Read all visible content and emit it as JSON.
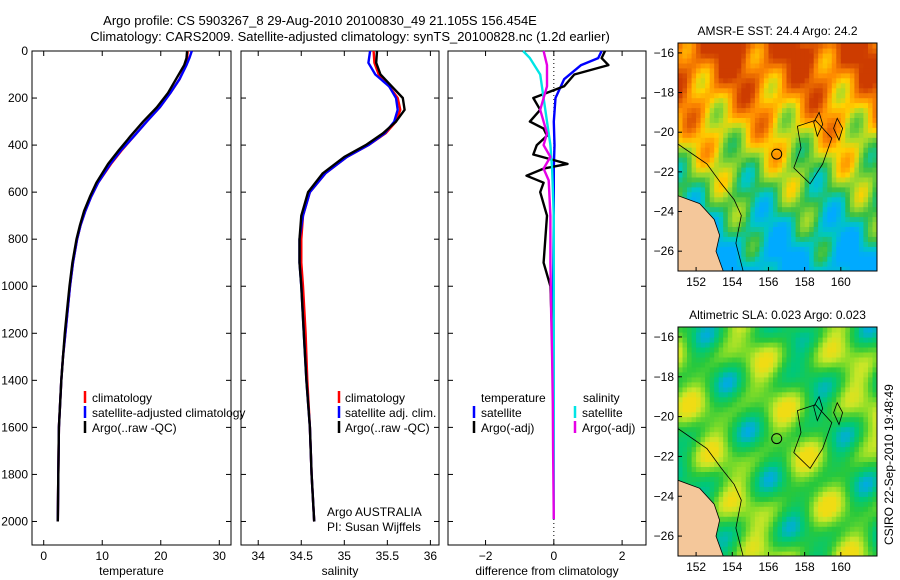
{
  "header": {
    "title_line1": "Argo profile: CS 5903267_8 29-Aug-2010 20100830_49 21.105S 156.454E",
    "title_line2": "Climatology: CARS2009. Satellite-adjusted climatology: synTS_20100828.nc (1.2d earlier)"
  },
  "colors": {
    "climatology": "#ff0000",
    "satellite": "#0000ff",
    "argo": "#000000",
    "satellite_salinity": "#00e5e5",
    "argo_salinity_adj": "#e600e6",
    "land": "#f4c79a"
  },
  "footer": {
    "credit": "CSIRO 22-Sep-2010 19:48:49"
  },
  "annotations": {
    "argo_program": "Argo AUSTRALIA",
    "pi": "PI: Susan Wijffels"
  },
  "chart_data": [
    {
      "type": "line",
      "xlabel": "temperature",
      "ylabel": "",
      "xlim": [
        -2,
        32
      ],
      "ylim": [
        2100,
        0
      ],
      "xticks": [
        0,
        10,
        20,
        30
      ],
      "yticks": [
        0,
        200,
        400,
        600,
        800,
        1000,
        1200,
        1400,
        1600,
        1800,
        2000
      ],
      "legend": [
        "climatology",
        "satellite-adjusted climatology",
        "Argo(..raw -QC)"
      ],
      "legend_location": "lower-middle",
      "series": [
        {
          "name": "climatology",
          "color": "#ff0000",
          "x": [
            24.6,
            24.5,
            24.3,
            23.2,
            21.6,
            19.8,
            17.6,
            15.5,
            13.4,
            11.5,
            9.3,
            8.1,
            7.1,
            6.3,
            5.7,
            5.0,
            4.5,
            4.1,
            3.7,
            3.3,
            3.0,
            2.8,
            2.6,
            2.5,
            2.4
          ],
          "y": [
            0,
            30,
            60,
            120,
            180,
            240,
            300,
            360,
            420,
            480,
            560,
            620,
            680,
            740,
            800,
            900,
            1000,
            1100,
            1200,
            1300,
            1400,
            1500,
            1600,
            1800,
            2000
          ]
        },
        {
          "name": "satellite-adjusted climatology",
          "color": "#0000ff",
          "x": [
            25.3,
            24.9,
            24.4,
            23.2,
            21.6,
            19.8,
            17.6,
            15.5,
            13.3,
            11.4,
            9.3,
            8.1,
            7.1,
            6.3,
            5.7,
            5.0,
            4.5,
            4.1,
            3.7,
            3.3,
            3.0,
            2.8,
            2.6,
            2.5,
            2.4
          ],
          "y": [
            0,
            30,
            60,
            120,
            180,
            240,
            300,
            360,
            420,
            480,
            560,
            620,
            680,
            740,
            800,
            900,
            1000,
            1100,
            1200,
            1300,
            1400,
            1500,
            1600,
            1800,
            2000
          ]
        },
        {
          "name": "Argo(..raw -QC)",
          "color": "#000000",
          "x": [
            24.5,
            24.4,
            24.0,
            22.6,
            21.2,
            19.3,
            17.0,
            14.9,
            12.9,
            11.0,
            9.0,
            7.9,
            6.9,
            6.2,
            5.6,
            4.9,
            4.4,
            4.0,
            3.6,
            3.3,
            3.0,
            2.8,
            2.6,
            2.5,
            2.4
          ],
          "y": [
            0,
            30,
            60,
            120,
            180,
            240,
            300,
            360,
            420,
            480,
            560,
            620,
            680,
            740,
            800,
            900,
            1000,
            1100,
            1200,
            1300,
            1400,
            1500,
            1600,
            1800,
            2000
          ]
        }
      ]
    },
    {
      "type": "line",
      "xlabel": "salinity",
      "ylabel": "",
      "xlim": [
        33.8,
        36.1
      ],
      "ylim": [
        2100,
        0
      ],
      "xticks": [
        34,
        34.5,
        35,
        35.5,
        36
      ],
      "legend": [
        "climatology",
        "satellite adj. clim.",
        "Argo(..raw -QC)"
      ],
      "legend_location": "lower-right",
      "series": [
        {
          "name": "climatology",
          "color": "#ff0000",
          "x": [
            35.34,
            35.35,
            35.4,
            35.52,
            35.62,
            35.65,
            35.6,
            35.48,
            35.28,
            35.03,
            34.78,
            34.6,
            34.52,
            34.5,
            34.5,
            34.52,
            34.55,
            34.57,
            34.6,
            34.62,
            34.65
          ],
          "y": [
            0,
            50,
            100,
            150,
            200,
            250,
            300,
            350,
            400,
            450,
            520,
            600,
            700,
            800,
            900,
            1000,
            1200,
            1400,
            1600,
            1800,
            2000
          ]
        },
        {
          "name": "satellite adj. clim.",
          "color": "#0000ff",
          "x": [
            35.3,
            35.28,
            35.36,
            35.52,
            35.6,
            35.62,
            35.58,
            35.47,
            35.28,
            35.03,
            34.78,
            34.6,
            34.52,
            34.48,
            34.48,
            34.5,
            34.53,
            34.56,
            34.6,
            34.62,
            34.65
          ],
          "y": [
            0,
            50,
            100,
            150,
            200,
            250,
            300,
            350,
            400,
            450,
            520,
            600,
            700,
            800,
            900,
            1000,
            1200,
            1400,
            1600,
            1800,
            2000
          ]
        },
        {
          "name": "Argo(..raw -QC)",
          "color": "#000000",
          "x": [
            35.38,
            35.37,
            35.42,
            35.55,
            35.68,
            35.7,
            35.6,
            35.45,
            35.25,
            35.0,
            34.75,
            34.58,
            34.5,
            34.48,
            34.48,
            34.5,
            34.53,
            34.56,
            34.6,
            34.62,
            34.65
          ],
          "y": [
            0,
            50,
            100,
            150,
            200,
            250,
            300,
            350,
            400,
            450,
            520,
            600,
            700,
            800,
            900,
            1000,
            1200,
            1400,
            1600,
            1800,
            2000
          ]
        }
      ],
      "annotations": [
        "Argo AUSTRALIA",
        "PI: Susan Wijffels"
      ]
    },
    {
      "type": "line",
      "xlabel": "difference from climatology",
      "ylabel": "",
      "xlim": [
        -3.1,
        2.7
      ],
      "ylim": [
        2100,
        0
      ],
      "xticks": [
        -2,
        0,
        2
      ],
      "legend": [
        "temperature",
        "satellite",
        "Argo(-adj)",
        "salinity",
        "satellite",
        "Argo(-adj)"
      ],
      "legend_location": "lower-middle",
      "series": [
        {
          "name": "temperature satellite",
          "color": "#0000ff",
          "x": [
            1.4,
            1.3,
            0.8,
            0.3,
            0.05,
            0.0,
            0.02,
            0.0,
            0.0,
            -0.02,
            0.0,
            0.0,
            0.0
          ],
          "y": [
            0,
            30,
            60,
            120,
            200,
            300,
            400,
            500,
            700,
            1000,
            1400,
            1800,
            1990
          ]
        },
        {
          "name": "temperature Argo(-adj)",
          "color": "#000000",
          "x": [
            1.5,
            1.4,
            1.6,
            0.6,
            0.3,
            -0.6,
            -0.4,
            -0.7,
            -0.3,
            -0.2,
            -0.5,
            -0.6,
            0.4,
            -0.3,
            -0.8,
            -0.3,
            -0.4,
            -0.2,
            -0.25,
            -0.3,
            -0.1,
            -0.05,
            0.0,
            0.0,
            0.0
          ],
          "y": [
            0,
            30,
            60,
            100,
            150,
            200,
            250,
            300,
            330,
            360,
            400,
            440,
            480,
            500,
            530,
            560,
            600,
            700,
            800,
            900,
            1000,
            1200,
            1400,
            1700,
            1990
          ]
        },
        {
          "name": "salinity satellite",
          "color": "#00e5e5",
          "x": [
            -0.9,
            -0.7,
            -0.4,
            -0.3,
            -0.2,
            -0.1,
            -0.05,
            0.0,
            0.0,
            0.0,
            0.0,
            0.0
          ],
          "y": [
            0,
            30,
            100,
            200,
            300,
            400,
            500,
            700,
            1000,
            1400,
            1800,
            1990
          ]
        },
        {
          "name": "salinity Argo(-adj)",
          "color": "#e600e6",
          "x": [
            -0.3,
            -0.2,
            -0.2,
            -0.4,
            -0.2,
            -0.3,
            -0.1,
            -0.3,
            -0.15,
            -0.1,
            -0.1,
            -0.08,
            -0.05,
            -0.03,
            -0.02,
            0.0
          ],
          "y": [
            0,
            60,
            150,
            250,
            350,
            400,
            450,
            500,
            550,
            700,
            900,
            1100,
            1300,
            1500,
            1700,
            1990
          ]
        }
      ]
    },
    {
      "type": "heatmap",
      "title": "AMSR-E SST: 24.4 Argo: 24.2",
      "xlim": [
        151,
        162
      ],
      "ylim": [
        -27,
        -15.5
      ],
      "xticks": [
        152,
        154,
        156,
        158,
        160
      ],
      "yticks": [
        -16,
        -18,
        -20,
        -22,
        -24,
        -26
      ],
      "marker": {
        "lon": 156.454,
        "lat": -21.105
      }
    },
    {
      "type": "heatmap",
      "title": "Altimetric SLA: 0.023 Argo: 0.023",
      "xlim": [
        151,
        162
      ],
      "ylim": [
        -27,
        -15.5
      ],
      "xticks": [
        152,
        154,
        156,
        158,
        160
      ],
      "yticks": [
        -16,
        -18,
        -20,
        -22,
        -24,
        -26
      ],
      "marker": {
        "lon": 156.454,
        "lat": -21.105
      }
    }
  ]
}
